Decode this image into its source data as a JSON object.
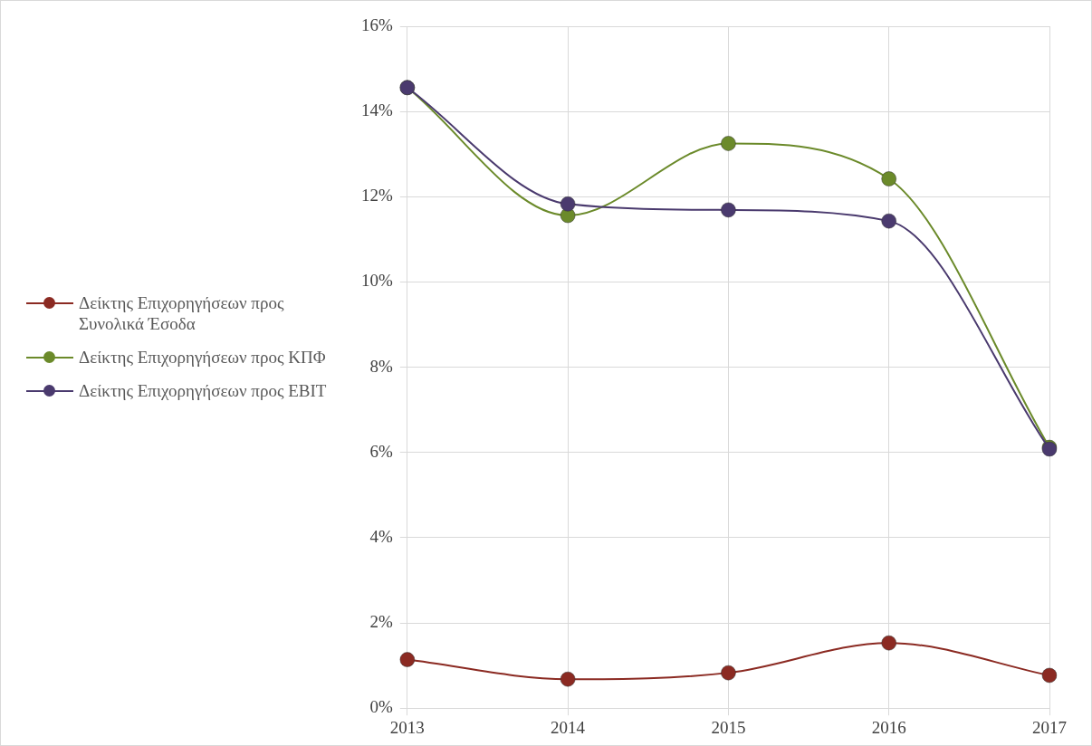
{
  "chart_data": {
    "type": "line",
    "categories": [
      "2013",
      "2014",
      "2015",
      "2016",
      "2017"
    ],
    "series": [
      {
        "name": "Δείκτης Επιχορηγήσεων προς Συνολικά Έσοδα",
        "color": "#8b2a22",
        "values": [
          1.14,
          0.68,
          0.83,
          1.53,
          0.77
        ]
      },
      {
        "name": "Δείκτης Επιχορηγήσεων προς ΚΠΦ",
        "color": "#6b8a2a",
        "values": [
          14.56,
          11.56,
          13.25,
          12.42,
          6.12
        ]
      },
      {
        "name": "Δείκτης Επιχορηγήσεων προς EBIT",
        "color": "#4a3a6e",
        "values": [
          14.56,
          11.83,
          11.69,
          11.43,
          6.08
        ]
      }
    ],
    "ylim": [
      0,
      16
    ],
    "yticks": [
      {
        "value": 0,
        "label": "0%"
      },
      {
        "value": 2,
        "label": "2%"
      },
      {
        "value": 4,
        "label": "4%"
      },
      {
        "value": 6,
        "label": "6%"
      },
      {
        "value": 8,
        "label": "8%"
      },
      {
        "value": 10,
        "label": "10%"
      },
      {
        "value": 12,
        "label": "12%"
      },
      {
        "value": 14,
        "label": "14%"
      },
      {
        "value": 16,
        "label": "16%"
      }
    ],
    "grid": true,
    "legend": "left",
    "marker": "circle",
    "line_style": "solid"
  }
}
